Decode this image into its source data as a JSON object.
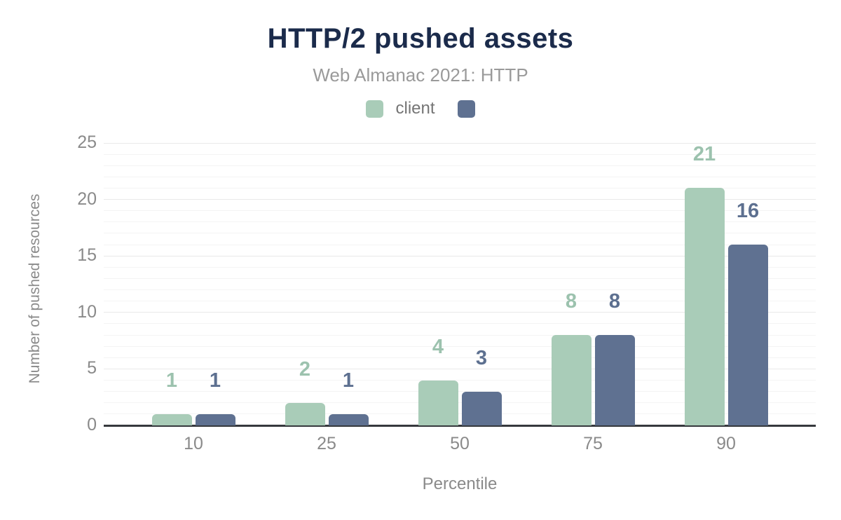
{
  "chart_data": {
    "type": "bar",
    "title": "HTTP/2 pushed assets",
    "subtitle": "Web Almanac 2021: HTTP",
    "categories": [
      "10",
      "25",
      "50",
      "75",
      "90"
    ],
    "series": [
      {
        "name": "client",
        "color": "#a9ccb8",
        "label_color": "#9cc2ae",
        "values": [
          1,
          2,
          4,
          8,
          21
        ]
      },
      {
        "name": "",
        "color": "#5f7191",
        "label_color": "#5d7090",
        "values": [
          1,
          1,
          3,
          8,
          16
        ]
      }
    ],
    "xlabel": "Percentile",
    "ylabel": "Number of pushed resources",
    "ylim": [
      0,
      25
    ],
    "yticks": [
      0,
      5,
      10,
      15,
      20,
      25
    ],
    "grid": {
      "horizontal": true,
      "minor_step": 1,
      "major_step": 5,
      "minor_color": "#f4f4f4",
      "major_color": "#e9e9e9"
    },
    "legend_position": "top",
    "colors": {
      "title": "#1b2b4b",
      "subtitle": "#9a9a9a",
      "axis_text": "#8a8a8a",
      "axis_line": "#36393d",
      "background": "#ffffff"
    }
  }
}
